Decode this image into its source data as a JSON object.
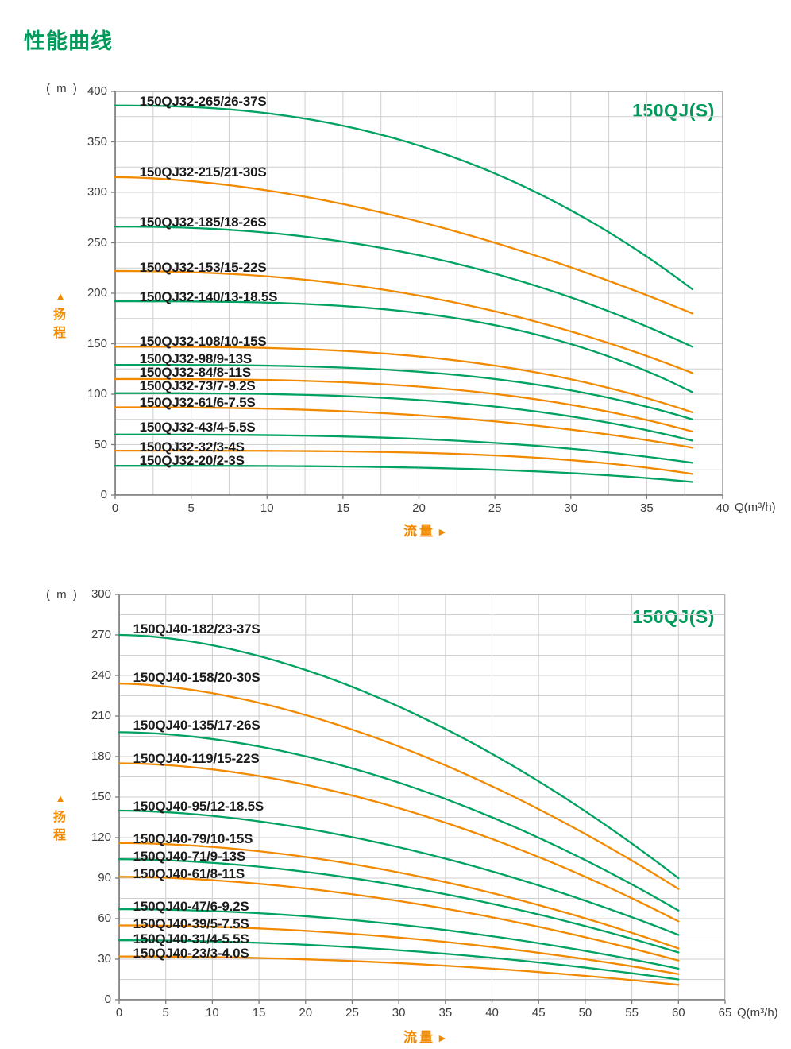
{
  "page": {
    "title": "性能曲线"
  },
  "colors": {
    "green": "#00a261",
    "orange": "#f18a00",
    "title_green": "#009a5b",
    "accent_orange": "#f18a00",
    "grid": "#cfcfcf",
    "frame": "#b3b3b3",
    "axis": "#7d7d7d",
    "tick_text": "#3c3c3c",
    "curve_label_text": "#1b1b1b"
  },
  "charts": [
    {
      "series_title": "150QJ(S)",
      "unit_label": "( m )",
      "y_axis_label": "扬程",
      "y_axis_arrow": "▲",
      "x_axis_label": "流量",
      "x_axis_arrow": "►",
      "x_unit": "Q(m³/h)",
      "chart_data": {
        "type": "line",
        "title": "150QJ(S) pump performance curves (150QJ32 series)",
        "xlabel": "流量 Q(m³/h)",
        "ylabel": "扬程 (m)",
        "xlim": [
          0,
          40
        ],
        "ylim": [
          0,
          400
        ],
        "x_ticks": [
          0,
          5,
          10,
          15,
          20,
          25,
          30,
          35,
          40
        ],
        "y_ticks": [
          0,
          50,
          100,
          150,
          200,
          250,
          300,
          350,
          400
        ],
        "x_grid_step": 2.5,
        "y_grid_step": 25,
        "grid": "on",
        "rated_flow": 32,
        "curve_end_flow": 38,
        "series": [
          {
            "name": "150QJ32-265/26-37S",
            "color": "green",
            "shutoff_head": 386,
            "rated_head": 265,
            "end_head": 204,
            "label_pos": {
              "q": 1.6,
              "m": 390
            }
          },
          {
            "name": "150QJ32-215/21-30S",
            "color": "orange",
            "shutoff_head": 315,
            "rated_head": 215,
            "end_head": 180,
            "label_pos": {
              "q": 1.6,
              "m": 320
            }
          },
          {
            "name": "150QJ32-185/18-26S",
            "color": "green",
            "shutoff_head": 266,
            "rated_head": 185,
            "end_head": 147,
            "label_pos": {
              "q": 1.6,
              "m": 270
            }
          },
          {
            "name": "150QJ32-153/15-22S",
            "color": "orange",
            "shutoff_head": 222,
            "rated_head": 153,
            "end_head": 121,
            "label_pos": {
              "q": 1.6,
              "m": 225
            }
          },
          {
            "name": "150QJ32-140/13-18.5S",
            "color": "green",
            "shutoff_head": 192,
            "rated_head": 140,
            "end_head": 102,
            "label_pos": {
              "q": 1.6,
              "m": 196
            }
          },
          {
            "name": "150QJ32-108/10-15S",
            "color": "orange",
            "shutoff_head": 147,
            "rated_head": 108,
            "end_head": 82,
            "label_pos": {
              "q": 1.6,
              "m": 152
            }
          },
          {
            "name": "150QJ32-98/9-13S",
            "color": "green",
            "shutoff_head": 129,
            "rated_head": 98,
            "end_head": 75,
            "label_pos": {
              "q": 1.6,
              "m": 134.5
            }
          },
          {
            "name": "150QJ32-84/8-11S",
            "color": "orange",
            "shutoff_head": 115,
            "rated_head": 84,
            "end_head": 63,
            "label_pos": {
              "q": 1.6,
              "m": 121
            }
          },
          {
            "name": "150QJ32-73/7-9.2S",
            "color": "green",
            "shutoff_head": 101,
            "rated_head": 73,
            "end_head": 54,
            "label_pos": {
              "q": 1.6,
              "m": 107.5
            }
          },
          {
            "name": "150QJ32-61/6-7.5S",
            "color": "orange",
            "shutoff_head": 87,
            "rated_head": 61,
            "end_head": 47,
            "label_pos": {
              "q": 1.6,
              "m": 91
            }
          },
          {
            "name": "150QJ32-43/4-5.5S",
            "color": "green",
            "shutoff_head": 60,
            "rated_head": 43,
            "end_head": 32,
            "label_pos": {
              "q": 1.6,
              "m": 67
            }
          },
          {
            "name": "150QJ32-32/3-4S",
            "color": "orange",
            "shutoff_head": 44,
            "rated_head": 32,
            "end_head": 21,
            "label_pos": {
              "q": 1.6,
              "m": 47.5
            }
          },
          {
            "name": "150QJ32-20/2-3S",
            "color": "green",
            "shutoff_head": 29,
            "rated_head": 20,
            "end_head": 13,
            "label_pos": {
              "q": 1.6,
              "m": 34
            }
          }
        ]
      }
    },
    {
      "series_title": "150QJ(S)",
      "unit_label": "( m )",
      "y_axis_label": "扬程",
      "y_axis_arrow": "▲",
      "x_axis_label": "流量",
      "x_axis_arrow": "►",
      "x_unit": "Q(m³/h)",
      "chart_data": {
        "type": "line",
        "title": "150QJ(S) pump performance curves (150QJ40 series)",
        "xlabel": "流量 Q(m³/h)",
        "ylabel": "扬程 (m)",
        "xlim": [
          0,
          65
        ],
        "ylim": [
          0,
          300
        ],
        "x_ticks": [
          0,
          5,
          10,
          15,
          20,
          25,
          30,
          35,
          40,
          45,
          50,
          55,
          60,
          65
        ],
        "y_ticks": [
          0,
          30,
          60,
          90,
          120,
          150,
          180,
          210,
          240,
          270,
          300
        ],
        "x_grid_step": 5,
        "y_grid_step": 15,
        "grid": "on",
        "rated_flow": 40,
        "curve_end_flow": 60,
        "series": [
          {
            "name": "150QJ40-182/23-37S",
            "color": "green",
            "shutoff_head": 270,
            "rated_head": 182,
            "end_head": 90,
            "label_pos": {
              "q": 1.5,
              "m": 274
            }
          },
          {
            "name": "150QJ40-158/20-30S",
            "color": "orange",
            "shutoff_head": 234,
            "rated_head": 158,
            "end_head": 82,
            "label_pos": {
              "q": 1.5,
              "m": 238
            }
          },
          {
            "name": "150QJ40-135/17-26S",
            "color": "green",
            "shutoff_head": 198,
            "rated_head": 135,
            "end_head": 66,
            "label_pos": {
              "q": 1.5,
              "m": 203
            }
          },
          {
            "name": "150QJ40-119/15-22S",
            "color": "orange",
            "shutoff_head": 175,
            "rated_head": 119,
            "end_head": 58,
            "label_pos": {
              "q": 1.5,
              "m": 178
            }
          },
          {
            "name": "150QJ40-95/12-18.5S",
            "color": "green",
            "shutoff_head": 140,
            "rated_head": 95,
            "end_head": 48,
            "label_pos": {
              "q": 1.5,
              "m": 143
            }
          },
          {
            "name": "150QJ40-79/10-15S",
            "color": "orange",
            "shutoff_head": 116,
            "rated_head": 79,
            "end_head": 38,
            "label_pos": {
              "q": 1.5,
              "m": 119
            }
          },
          {
            "name": "150QJ40-71/9-13S",
            "color": "green",
            "shutoff_head": 104,
            "rated_head": 71,
            "end_head": 35,
            "label_pos": {
              "q": 1.5,
              "m": 106
            }
          },
          {
            "name": "150QJ40-61/8-11S",
            "color": "orange",
            "shutoff_head": 91,
            "rated_head": 61,
            "end_head": 29,
            "label_pos": {
              "q": 1.5,
              "m": 93
            }
          },
          {
            "name": "150QJ40-47/6-9.2S",
            "color": "green",
            "shutoff_head": 67,
            "rated_head": 47,
            "end_head": 23,
            "label_pos": {
              "q": 1.5,
              "m": 69
            }
          },
          {
            "name": "150QJ40-39/5-7.5S",
            "color": "orange",
            "shutoff_head": 55,
            "rated_head": 39,
            "end_head": 19,
            "label_pos": {
              "q": 1.5,
              "m": 56
            }
          },
          {
            "name": "150QJ40-31/4-5.5S",
            "color": "green",
            "shutoff_head": 44,
            "rated_head": 31,
            "end_head": 15,
            "label_pos": {
              "q": 1.5,
              "m": 45
            }
          },
          {
            "name": "150QJ40-23/3-4.0S",
            "color": "orange",
            "shutoff_head": 32,
            "rated_head": 23,
            "end_head": 11,
            "label_pos": {
              "q": 1.5,
              "m": 34
            }
          }
        ]
      }
    }
  ]
}
